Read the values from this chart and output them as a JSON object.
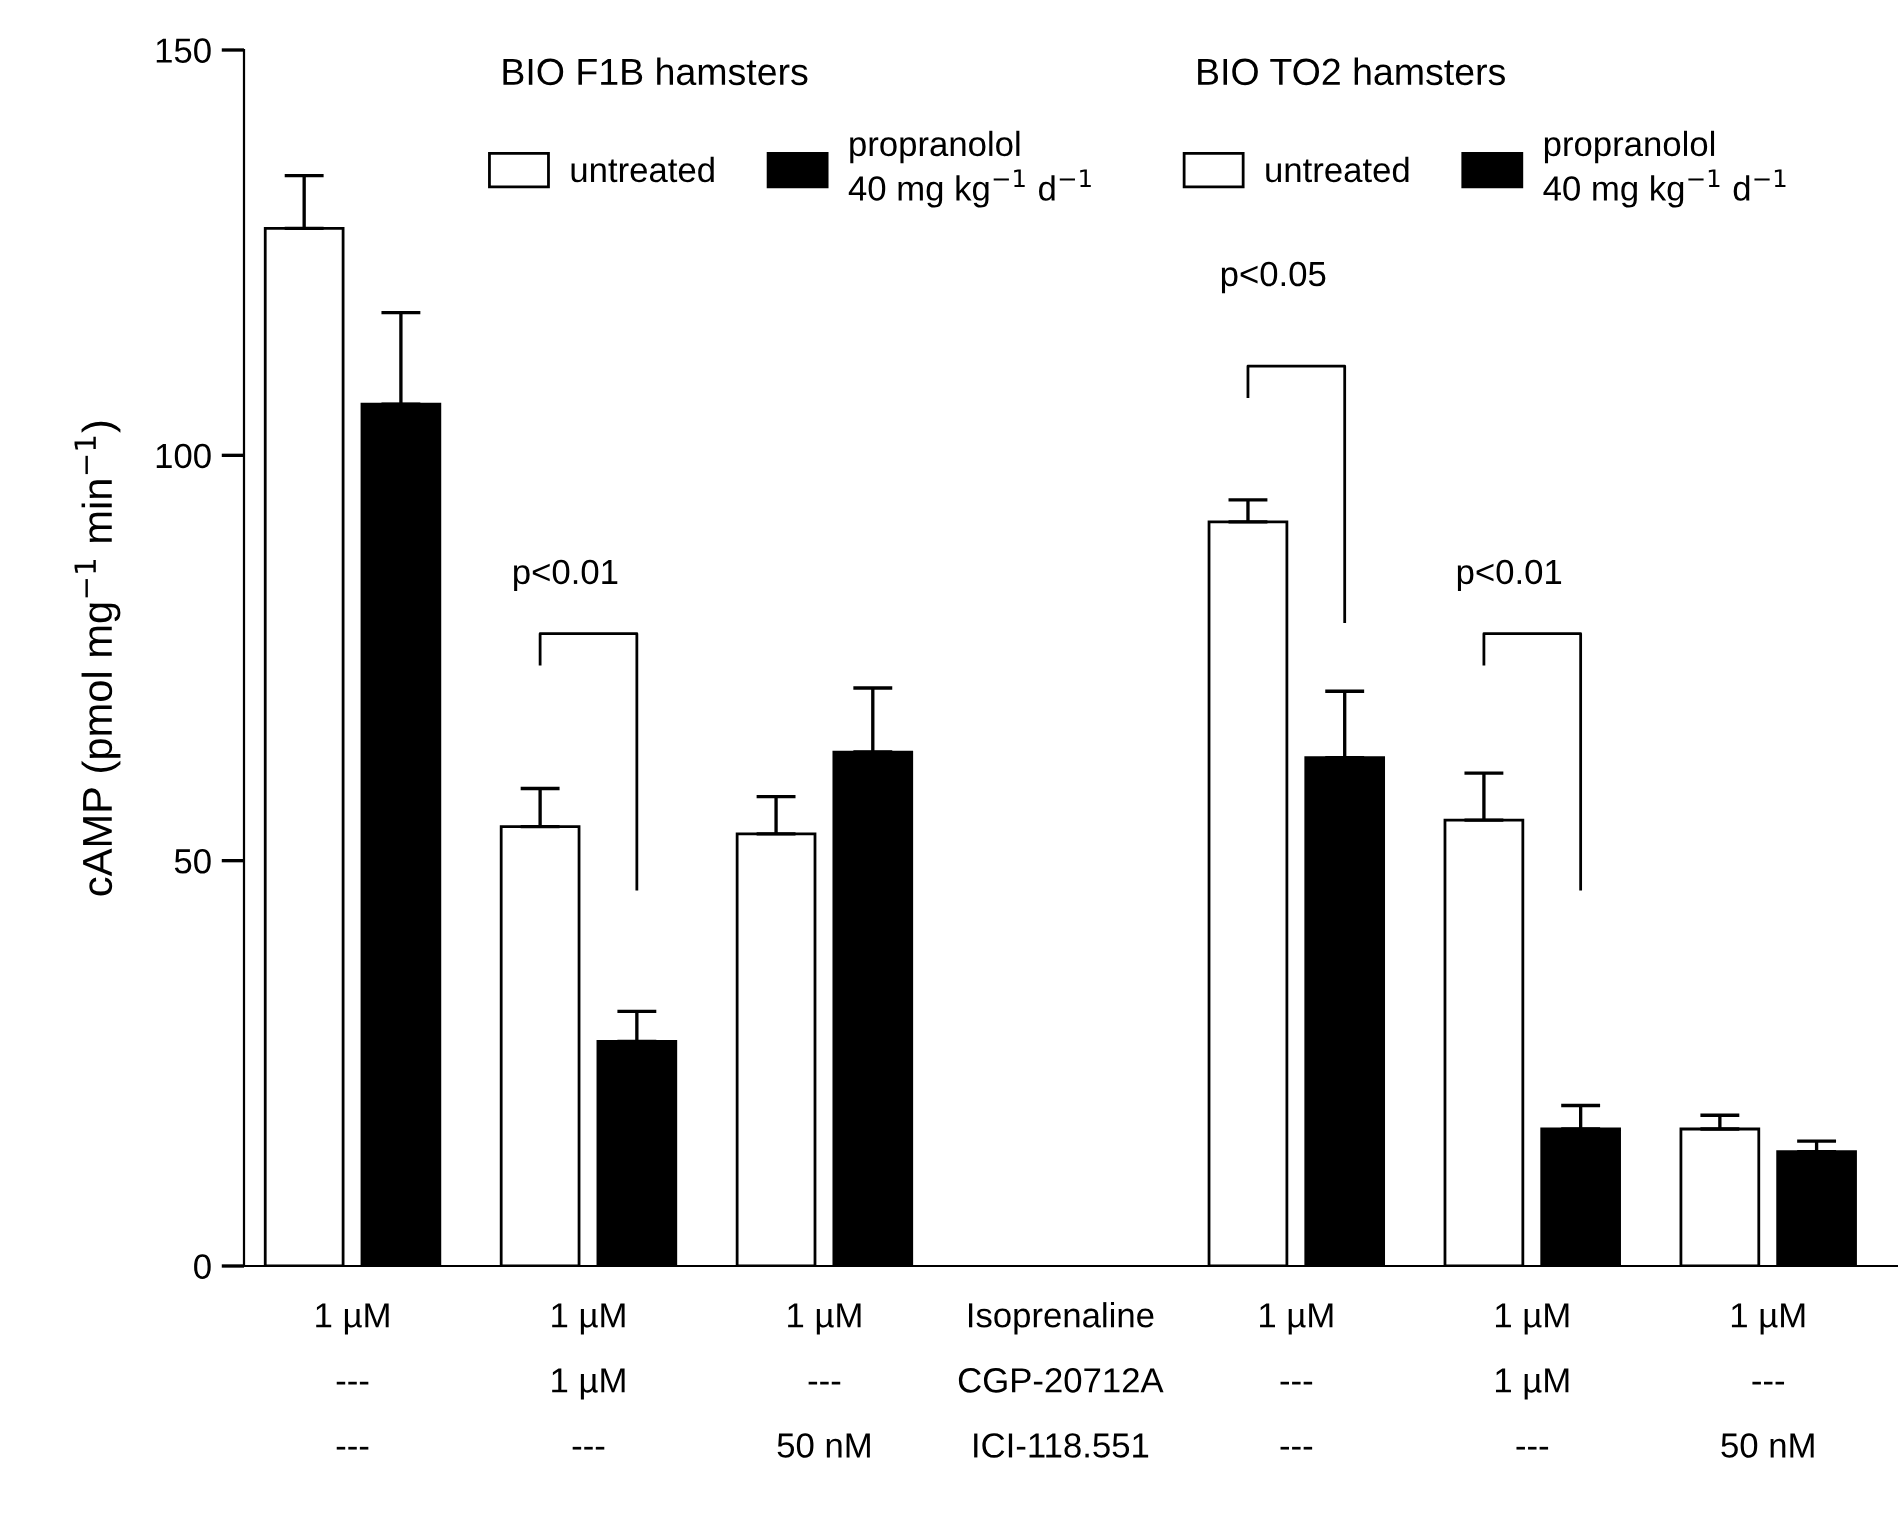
{
  "chart_data": {
    "type": "bar",
    "categories": [
      null,
      null,
      null,
      null,
      null,
      null,
      null
    ],
    "ylabel": "cAMP (pmol mg$^{−1}$ min$^{−1}$)",
    "series": [
      {
        "name": "untreated",
        "color": "#ffffff",
        "values": [
          128,
          54.2,
          53.3,
          null,
          91.8,
          55.0,
          16.9
        ],
        "errors": [
          [
            128,
            134.5
          ],
          [
            54.2,
            58.9
          ],
          [
            53.3,
            57.9
          ],
          null,
          [
            91.8,
            94.5
          ],
          [
            55.0,
            60.8
          ],
          [
            16.9,
            18.6
          ]
        ]
      },
      {
        "name": "propranolol\n40 mg kg$^{−1}$ d$^{−1}$",
        "color": "#000000",
        "values": [
          106.3,
          27.7,
          63.4,
          null,
          62.7,
          16.9,
          14.1
        ],
        "errors": [
          [
            106.3,
            117.6
          ],
          [
            27.7,
            31.4
          ],
          [
            63.4,
            71.3
          ],
          null,
          [
            62.7,
            70.9
          ],
          [
            16.9,
            19.8
          ],
          [
            14.1,
            15.4
          ]
        ]
      }
    ],
    "ylim": [
      0,
      150
    ],
    "yticks": [
      0,
      50,
      100,
      150
    ],
    "grid": false,
    "legend": "top",
    "annotations": [
      "BIO F1B hamsters",
      "BIO TO2 hamsters",
      "p<0.01",
      "p<0.05",
      "p<0.01",
      "1 µM\n---\n---",
      "1 µM\n1 µM\n---",
      "1 µM\n---\n50 nM",
      "Isoprenaline\nCGP-20712A\nICI-118.551",
      "1 µM\n---\n---",
      "1 µM\n1 µM\n---",
      "1 µM\n---\n50 nM"
    ]
  }
}
